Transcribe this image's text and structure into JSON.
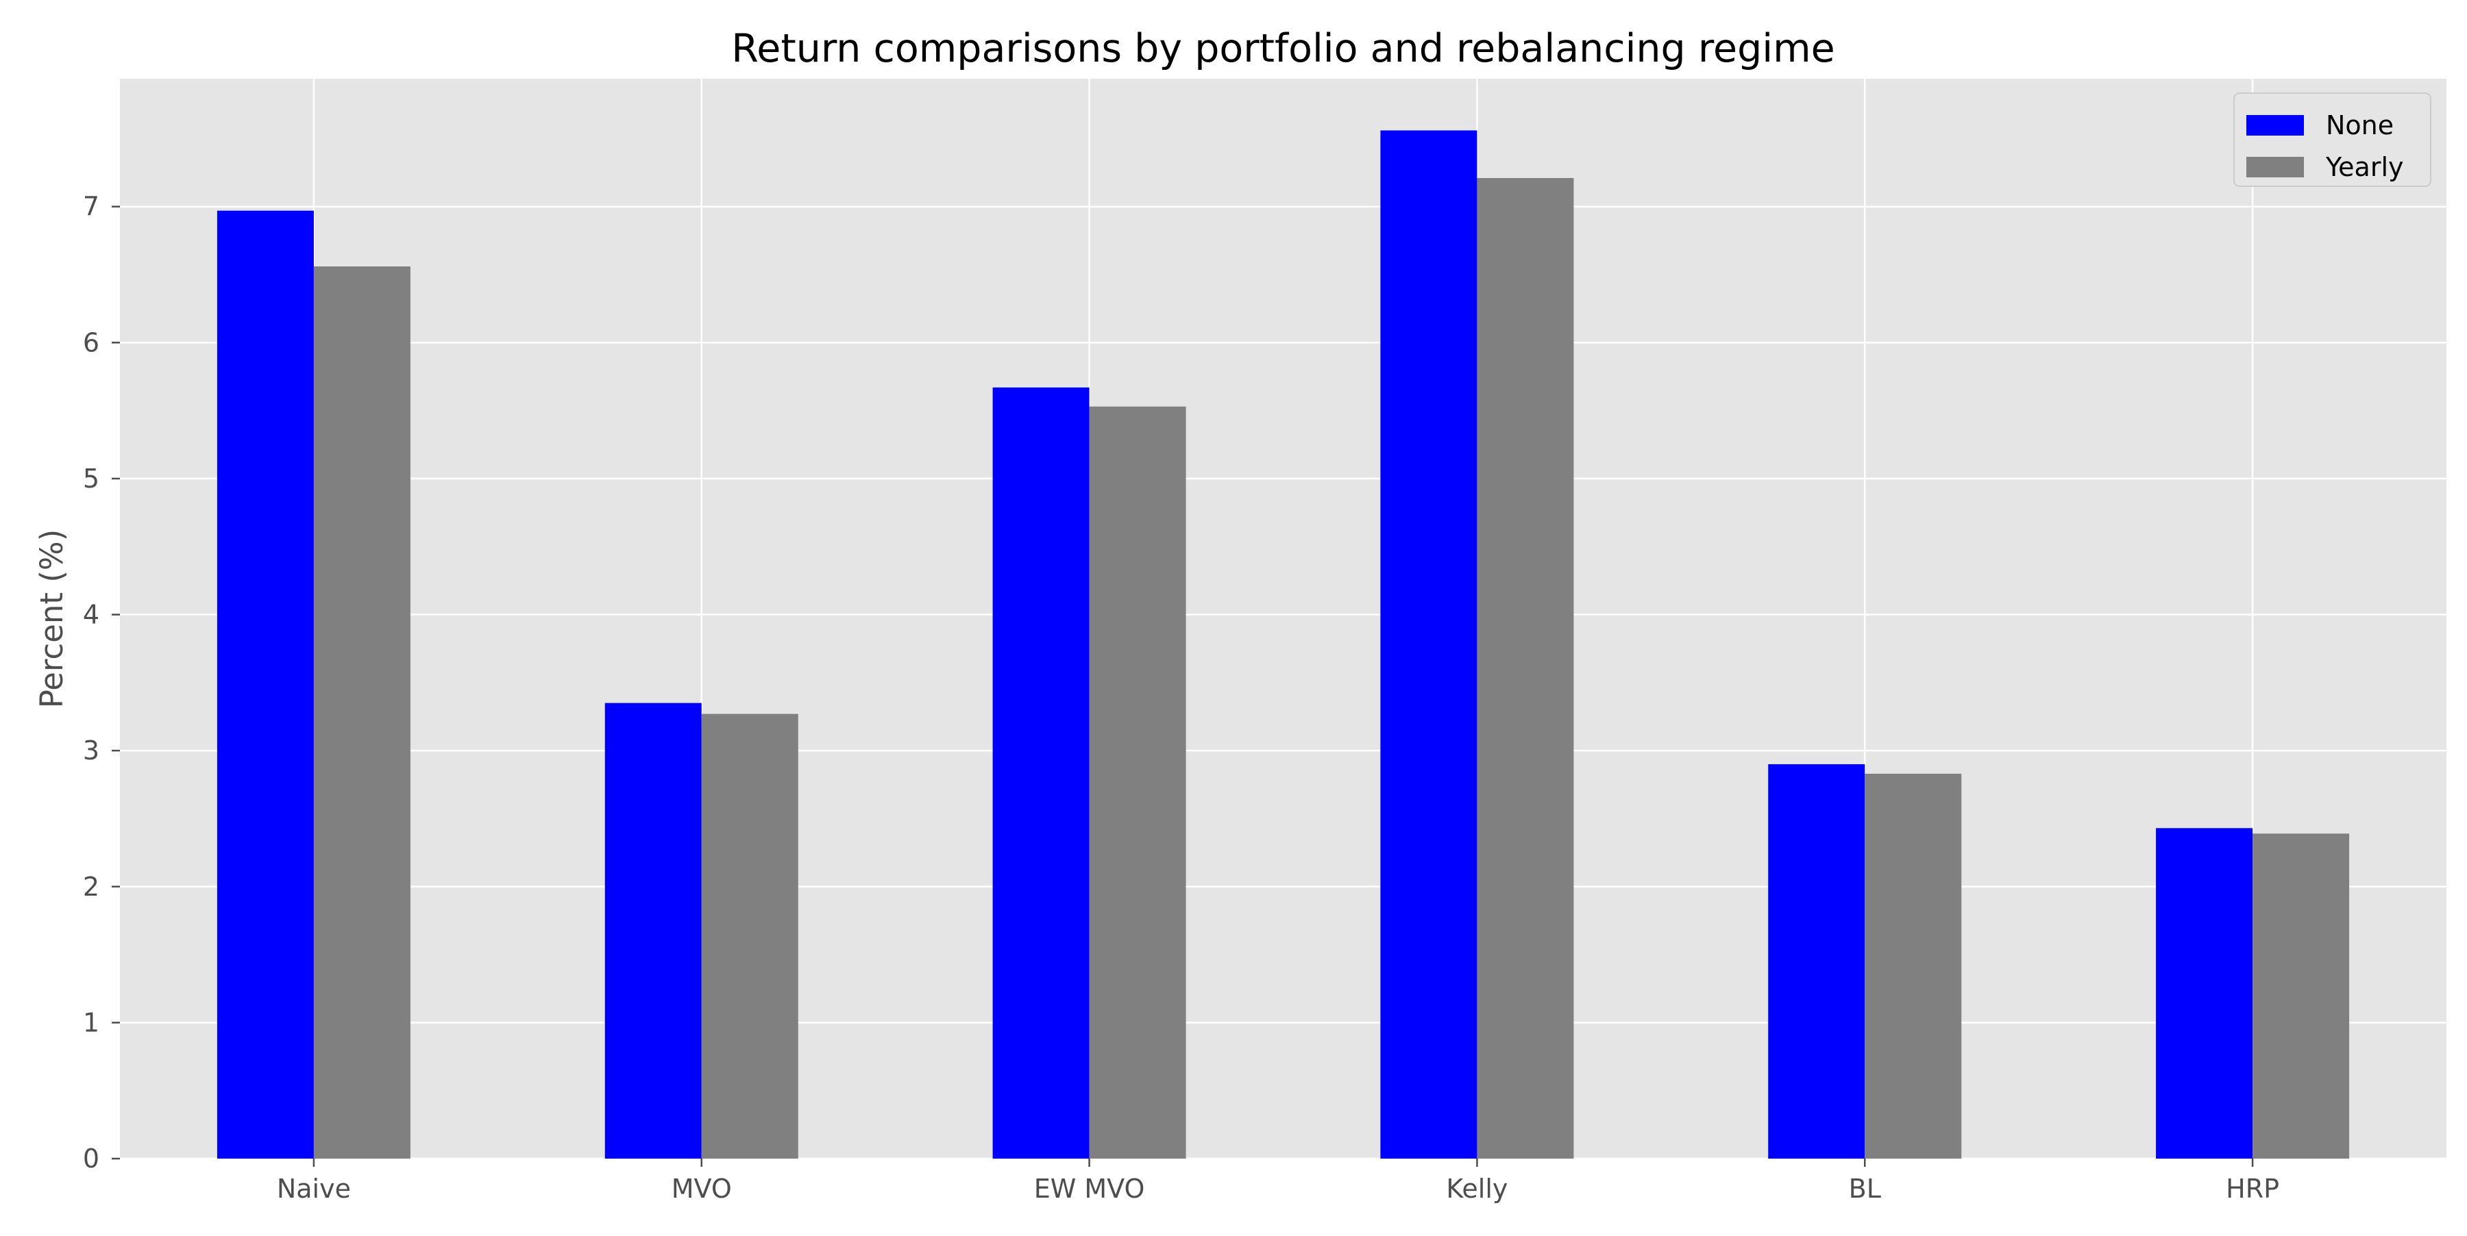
{
  "chart_data": {
    "type": "bar",
    "title": "Return comparisons by portfolio and rebalancing regime",
    "xlabel": "",
    "ylabel": "Percent (%)",
    "categories": [
      "Naive",
      "MVO",
      "EW MVO",
      "Kelly",
      "BL",
      "HRP"
    ],
    "series": [
      {
        "name": "None",
        "color": "#0000ff",
        "values": [
          6.97,
          3.35,
          5.67,
          7.56,
          2.9,
          2.43
        ]
      },
      {
        "name": "Yearly",
        "color": "#808080",
        "values": [
          6.56,
          3.27,
          5.53,
          7.21,
          2.83,
          2.39
        ]
      }
    ],
    "ylim": [
      0,
      7.94
    ],
    "yticks": [
      0,
      1,
      2,
      3,
      4,
      5,
      6,
      7
    ],
    "grid": true,
    "legend_position": "top-right",
    "style": {
      "plot_background": "#e5e5e5",
      "grid_color": "#ffffff"
    }
  }
}
